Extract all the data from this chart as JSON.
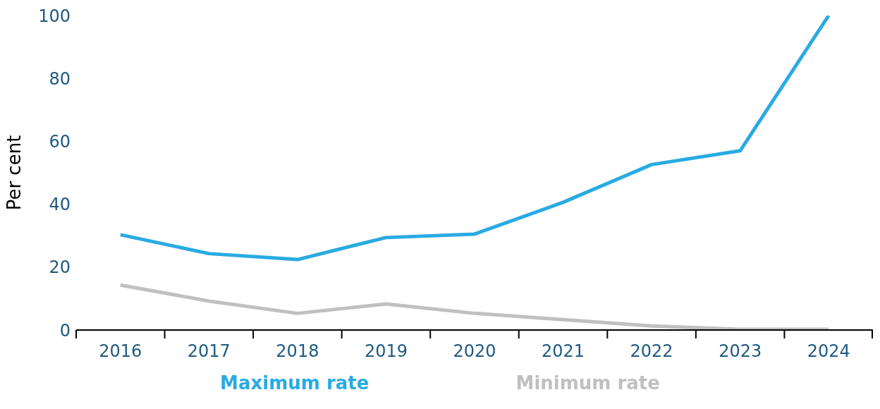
{
  "chart_data": {
    "type": "line",
    "ylabel": "Per cent",
    "categories": [
      "2016",
      "2017",
      "2018",
      "2019",
      "2020",
      "2021",
      "2022",
      "2023",
      "2024"
    ],
    "series": [
      {
        "name": "Maximum rate",
        "color": "#29abe2",
        "values": [
          30.3,
          24.3,
          22.4,
          29.4,
          30.5,
          40.6,
          52.6,
          57,
          100
        ]
      },
      {
        "name": "Minimum rate",
        "color": "#c0c0c0",
        "values": [
          14.3,
          9.2,
          5.3,
          8.3,
          5.3,
          3.3,
          1.3,
          0.2,
          0.2
        ]
      }
    ],
    "ylim": [
      0,
      100
    ],
    "yticks": [
      0,
      20,
      40,
      60,
      80,
      100
    ],
    "grid": false,
    "legend": "bottom",
    "marker": "none",
    "line_style": "solid"
  }
}
